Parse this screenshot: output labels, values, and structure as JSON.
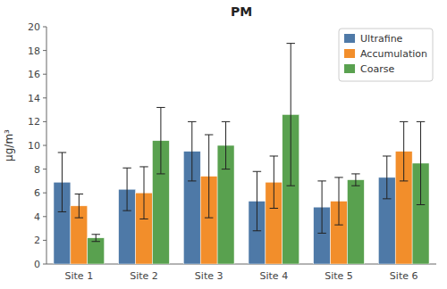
{
  "chart_data": {
    "type": "bar",
    "title": "PM",
    "y_label": "μg/m³",
    "categories": [
      "Site 1",
      "Site 2",
      "Site 3",
      "Site 4",
      "Site 5",
      "Site 6"
    ],
    "series": [
      {
        "name": "Ultrafine",
        "color": "#4e79a7",
        "values": [
          6.9,
          6.3,
          9.5,
          5.3,
          4.8,
          7.3
        ],
        "errors": [
          2.5,
          1.8,
          2.5,
          2.5,
          2.2,
          1.8
        ]
      },
      {
        "name": "Accumulation",
        "color": "#f28e2b",
        "values": [
          4.9,
          6.0,
          7.4,
          6.9,
          5.3,
          9.5
        ],
        "errors": [
          1.0,
          2.2,
          3.5,
          2.2,
          2.0,
          2.5
        ]
      },
      {
        "name": "Coarse",
        "color": "#59a14f",
        "values": [
          2.2,
          10.4,
          10.0,
          12.6,
          7.1,
          8.5
        ],
        "errors": [
          0.3,
          2.8,
          2.0,
          6.0,
          0.5,
          3.5
        ]
      }
    ],
    "ylim": [
      0,
      20
    ],
    "yticks": [
      0,
      2,
      4,
      6,
      8,
      10,
      12,
      14,
      16,
      18,
      20
    ],
    "grid": false,
    "legend": "upper right"
  }
}
